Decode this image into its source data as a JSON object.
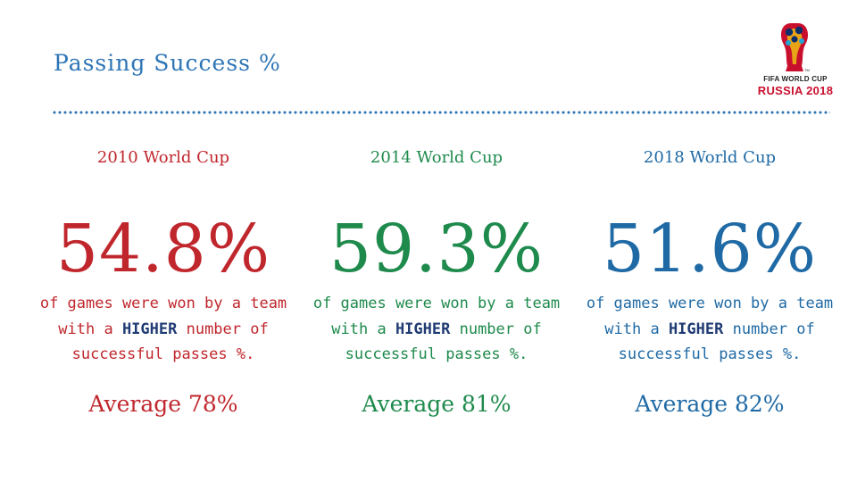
{
  "title": "Passing Success %",
  "logo": {
    "line1": "FIFA WORLD CUP",
    "line2": "RUSSIA 2018",
    "tm": "TM"
  },
  "colors": {
    "c2010": "#c0272d",
    "c2014": "#1e8a4c",
    "c2018": "#1f6aa5",
    "title": "#2e75b6",
    "bold": "#1f3b73"
  },
  "columns": [
    {
      "heading": "2010 World Cup",
      "big": "54.8%",
      "desc_pre": "of games were won by a team with a ",
      "desc_bold": "HIGHER",
      "desc_post": " number of successful passes %.",
      "average": "Average 78%"
    },
    {
      "heading": "2014 World Cup",
      "big": "59.3%",
      "desc_pre": "of games were won by a team with a ",
      "desc_bold": "HIGHER",
      "desc_post": " number of successful passes %.",
      "average": "Average 81%"
    },
    {
      "heading": "2018 World Cup",
      "big": "51.6%",
      "desc_pre": "of games were won by a team with a ",
      "desc_bold": "HIGHER",
      "desc_post": " number of successful passes %.",
      "average": "Average 82%"
    }
  ]
}
